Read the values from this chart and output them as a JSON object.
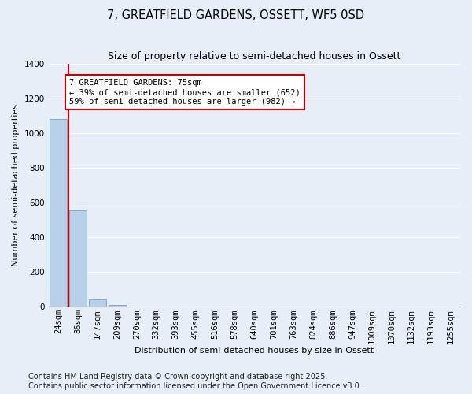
{
  "title": "7, GREATFIELD GARDENS, OSSETT, WF5 0SD",
  "subtitle": "Size of property relative to semi-detached houses in Ossett",
  "xlabel": "Distribution of semi-detached houses by size in Ossett",
  "ylabel": "Number of semi-detached properties",
  "categories": [
    "24sqm",
    "86sqm",
    "147sqm",
    "209sqm",
    "270sqm",
    "332sqm",
    "393sqm",
    "455sqm",
    "516sqm",
    "578sqm",
    "640sqm",
    "701sqm",
    "763sqm",
    "824sqm",
    "886sqm",
    "947sqm",
    "1009sqm",
    "1070sqm",
    "1132sqm",
    "1193sqm",
    "1255sqm"
  ],
  "values": [
    1080,
    555,
    40,
    10,
    0,
    0,
    0,
    0,
    0,
    0,
    0,
    0,
    0,
    0,
    0,
    0,
    0,
    0,
    0,
    0,
    0
  ],
  "bar_color": "#b8d0e8",
  "bar_edge_color": "#7aadd4",
  "red_line_x": 0.5,
  "property_label": "7 GREATFIELD GARDENS: 75sqm",
  "annotation_line1": "← 39% of semi-detached houses are smaller (652)",
  "annotation_line2": "59% of semi-detached houses are larger (982) →",
  "annotation_box_color": "#ffffff",
  "annotation_box_edge": "#cc0000",
  "red_line_color": "#cc0000",
  "ylim": [
    0,
    1400
  ],
  "yticks": [
    0,
    200,
    400,
    600,
    800,
    1000,
    1200,
    1400
  ],
  "background_color": "#e8eef8",
  "grid_color": "#ffffff",
  "footer1": "Contains HM Land Registry data © Crown copyright and database right 2025.",
  "footer2": "Contains public sector information licensed under the Open Government Licence v3.0.",
  "title_fontsize": 10.5,
  "subtitle_fontsize": 9,
  "axis_fontsize": 7.5,
  "ylabel_fontsize": 8,
  "xlabel_fontsize": 8,
  "footer_fontsize": 7,
  "annot_fontsize": 7.5
}
